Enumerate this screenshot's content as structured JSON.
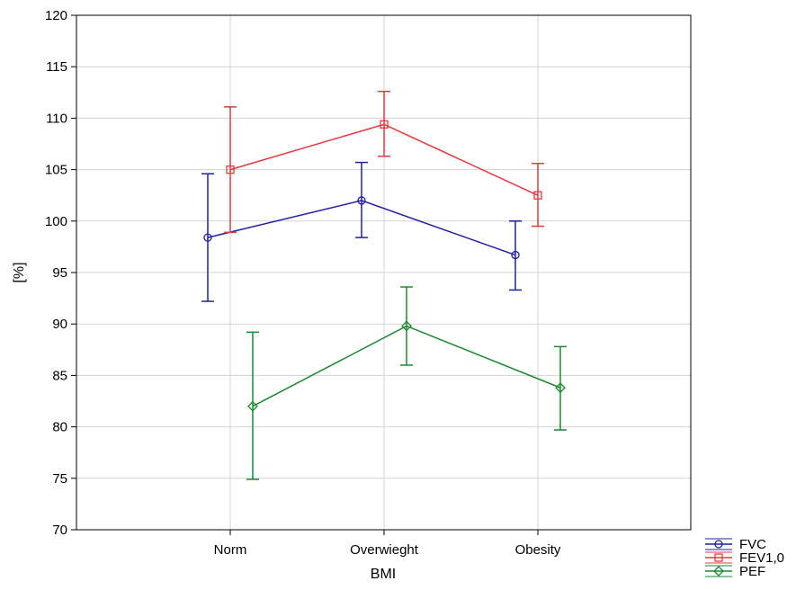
{
  "chart_data": {
    "type": "line",
    "title": "",
    "xlabel": "BMI",
    "ylabel": "[%]",
    "categories": [
      "Norm",
      "Overwieght",
      "Obesity"
    ],
    "ylim": [
      70,
      120
    ],
    "yticks": [
      70,
      75,
      80,
      85,
      90,
      95,
      100,
      105,
      110,
      115,
      120
    ],
    "grid": true,
    "legend_position": "bottom-right, outside plot",
    "error_bars": true,
    "series": [
      {
        "name": "FVC",
        "color": "#1f1fa8",
        "marker": "circle",
        "values": [
          98.4,
          102.0,
          96.7
        ],
        "lower": [
          92.2,
          98.4,
          93.3
        ],
        "upper": [
          104.6,
          105.7,
          100.0
        ]
      },
      {
        "name": "FEV1,0",
        "color": "#e8383c",
        "marker": "square",
        "values": [
          105.0,
          109.4,
          102.5
        ],
        "lower": [
          98.9,
          106.3,
          99.5
        ],
        "upper": [
          111.1,
          112.6,
          105.6
        ]
      },
      {
        "name": "PEF",
        "color": "#1a8a2e",
        "marker": "diamond",
        "values": [
          82.0,
          89.8,
          83.8
        ],
        "lower": [
          74.9,
          86.0,
          79.7
        ],
        "upper": [
          89.2,
          93.6,
          87.8
        ]
      }
    ]
  }
}
